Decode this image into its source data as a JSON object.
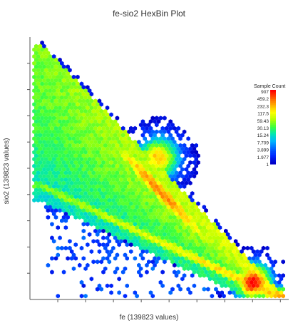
{
  "chart_data": {
    "type": "heatmap",
    "subtype": "hexbin",
    "title": "fe-sio2 HexBin Plot",
    "xlabel": "fe (139823 values)",
    "ylabel": "sio2 (139823 values)",
    "legend": {
      "title": "Sample Count",
      "placement": "right",
      "ticks": [
        "907",
        "459.2",
        "232.3",
        "117.5",
        "59.43",
        "30.13",
        "15.24",
        "7.709",
        "3.899",
        "1.977",
        "1"
      ],
      "colors": [
        "#ff0000",
        "#ff5a00",
        "#ffae00",
        "#ffff00",
        "#b4ff00",
        "#3cff3c",
        "#00e6b4",
        "#00b4ff",
        "#0064ff",
        "#0028ff",
        "#0000c8"
      ]
    },
    "x_ticks_count": 9,
    "y_ticks_count": 10
  }
}
